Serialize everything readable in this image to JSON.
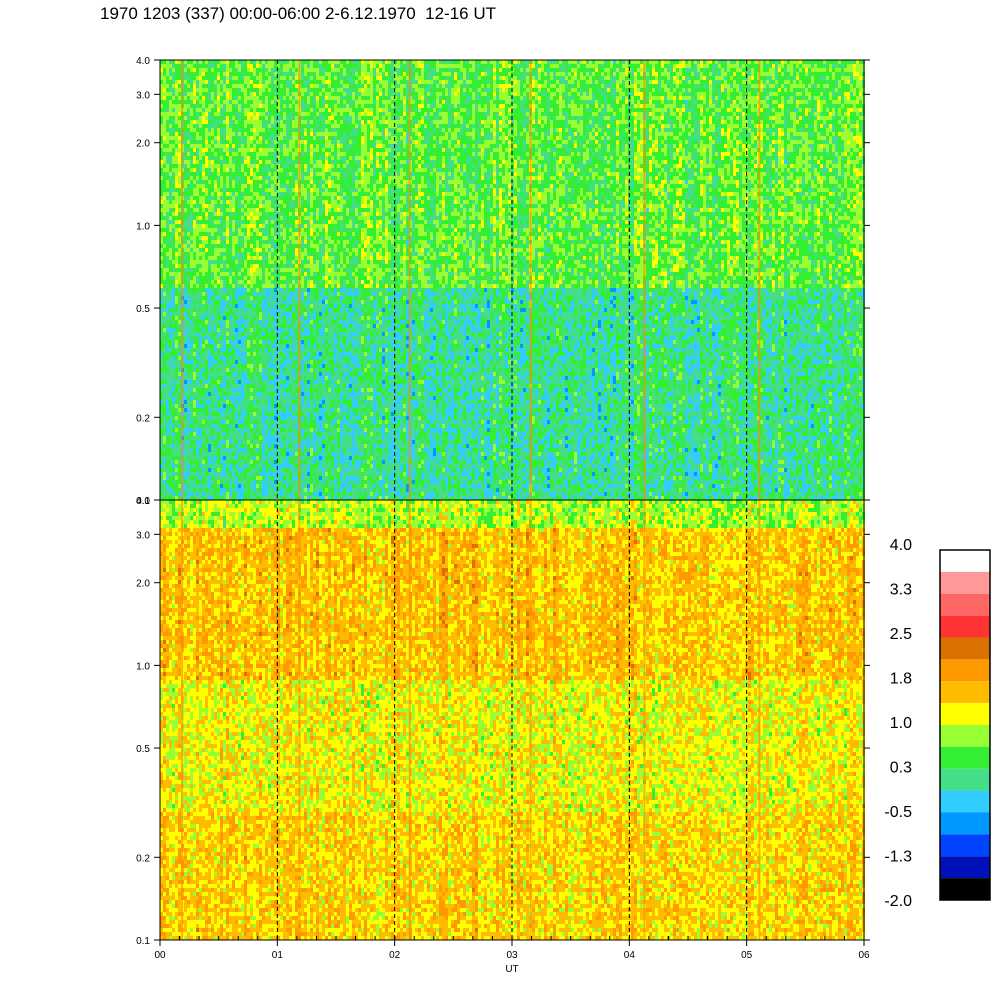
{
  "title": "1970 1203 (337) 00:00-06:00 2-6.12.1970  12-16 UT",
  "chart_data": {
    "type": "heatmap",
    "x_axis": {
      "label": "UT",
      "range": [
        0,
        6
      ],
      "ticks": [
        0,
        1,
        2,
        3,
        4,
        5,
        6
      ],
      "tick_labels": [
        "00",
        "01",
        "02",
        "03",
        "04",
        "05",
        "06"
      ],
      "dashed_gridlines": [
        1,
        2,
        3,
        4,
        5
      ]
    },
    "y_axis": {
      "scale": "log",
      "range": [
        0.1,
        4.0
      ],
      "ticks": [
        0.1,
        0.2,
        0.5,
        1.0,
        2.0,
        3.0,
        4.0
      ],
      "tick_labels": [
        "0.1",
        "0.2",
        "0.5",
        "1.0",
        "2.0",
        "3.0",
        "4.0"
      ]
    },
    "panels": [
      {
        "description_bands": [
          {
            "y_from": 0.1,
            "y_to": 0.6,
            "level": 0.1
          },
          {
            "y_from": 0.6,
            "y_to": 4.0,
            "level": 0.55
          }
        ],
        "bright_lines_x": [
          0.18,
          1.18,
          2.12,
          3.15,
          4.12,
          5.1
        ]
      },
      {
        "description_bands": [
          {
            "y_from": 0.1,
            "y_to": 0.3,
            "level": 1.45
          },
          {
            "y_from": 0.3,
            "y_to": 0.9,
            "level": 1.2
          },
          {
            "y_from": 0.9,
            "y_to": 3.2,
            "level": 1.55
          },
          {
            "y_from": 3.2,
            "y_to": 4.0,
            "level": 0.9
          }
        ],
        "bright_lines_x": [
          0.18,
          1.18,
          2.12,
          3.15,
          4.12,
          5.1
        ]
      }
    ],
    "colorbar": {
      "labels": [
        "4.0",
        "3.3",
        "2.5",
        "1.8",
        "1.0",
        "0.3",
        "-0.5",
        "-1.3",
        "-2.0"
      ],
      "colors": [
        "#ffffff",
        "#ff9999",
        "#ff6666",
        "#ff3333",
        "#d97000",
        "#ff9900",
        "#ffbb00",
        "#ffff00",
        "#99ff33",
        "#33ee33",
        "#44dd88",
        "#33ccff",
        "#0099ff",
        "#0044ff",
        "#0011bb",
        "#000000"
      ]
    }
  }
}
